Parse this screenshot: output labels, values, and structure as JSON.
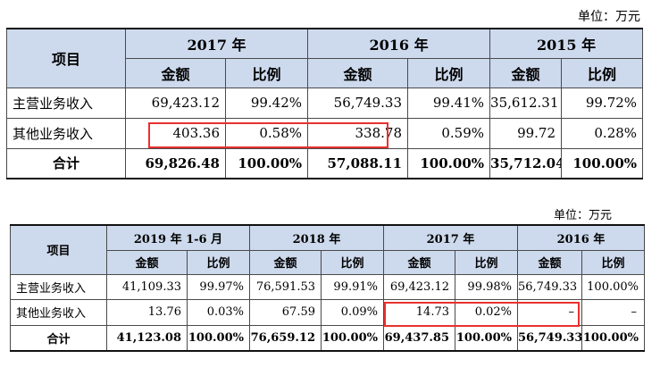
{
  "table1": {
    "unit": "单位：万元",
    "item_header": "项目",
    "years": [
      "2017 年",
      "2016 年",
      "2015 年"
    ],
    "sub_amount": "金额",
    "sub_ratio": "比例",
    "rows": [
      {
        "label": "主营业务收入",
        "cells": [
          "69,423.12",
          "99.42%",
          "56,749.33",
          "99.41%",
          "35,612.31",
          "99.72%"
        ]
      },
      {
        "label": "其他业务收入",
        "cells": [
          "403.36",
          "0.58%",
          "338.78",
          "0.59%",
          "99.72",
          "0.28%"
        ]
      },
      {
        "label": "合计",
        "cells": [
          "69,826.48",
          "100.00%",
          "57,088.11",
          "100.00%",
          "35,712.04",
          "100.00%"
        ]
      }
    ]
  },
  "table2": {
    "unit": "单位：万元",
    "item_header": "项目",
    "years": [
      "2019 年 1-6 月",
      "2018 年",
      "2017 年",
      "2016 年"
    ],
    "sub_amount": "金额",
    "sub_ratio": "比例",
    "rows": [
      {
        "label": "主营业务收入",
        "cells": [
          "41,109.33",
          "99.97%",
          "76,591.53",
          "99.91%",
          "69,423.12",
          "99.98%",
          "56,749.33",
          "100.00%"
        ]
      },
      {
        "label": "其他业务收入",
        "cells": [
          "13.76",
          "0.03%",
          "67.59",
          "0.09%",
          "14.73",
          "0.02%",
          "–",
          "–"
        ]
      },
      {
        "label": "合计",
        "cells": [
          "41,123.08",
          "100.00%",
          "76,659.12",
          "100.00%",
          "69,437.85",
          "100.00%",
          "56,749.33",
          "100.00%"
        ]
      }
    ]
  },
  "colors": {
    "header_bg": "#cdd9ec",
    "highlight": "#e8312f"
  }
}
